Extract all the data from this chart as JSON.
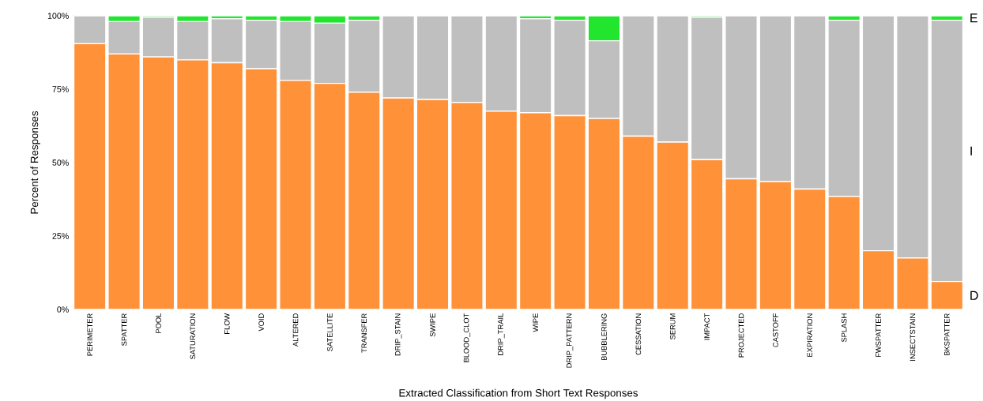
{
  "chart_data": {
    "type": "bar",
    "stacked": true,
    "xlabel": "Extracted Classification from Short Text Responses",
    "ylabel": "Percent of Responses",
    "categories": [
      "PERIMETER",
      "SPATTER",
      "POOL",
      "SATURATION",
      "FLOW",
      "VOID",
      "ALTERED",
      "SATELLITE",
      "TRANSFER",
      "DRIP_STAIN",
      "SWIPE",
      "BLOOD_CLOT",
      "DRIP_TRAIL",
      "WIPE",
      "DRIP_PATTERN",
      "BUBBLERING",
      "CESSATION",
      "SERUM",
      "IMPACT",
      "PROJECTED",
      "CASTOFF",
      "EXPIRATION",
      "SPLASH",
      "FWSPATTER",
      "INSECTSTAIN",
      "BKSPATTER"
    ],
    "series": [
      {
        "name": "D",
        "color": "#ff9138",
        "values": [
          90.5,
          87,
          86,
          85,
          84,
          82,
          78,
          77,
          74,
          72,
          71.5,
          70.5,
          67.5,
          67,
          66,
          65,
          59,
          57,
          51,
          44.5,
          43.5,
          41,
          38.5,
          20,
          17.5,
          9.5
        ]
      },
      {
        "name": "I",
        "color": "#bfbfbf",
        "values": [
          9.5,
          11,
          13.5,
          13,
          15,
          16.5,
          20,
          20.5,
          24.5,
          28,
          28.5,
          29.5,
          32.5,
          32,
          32.5,
          26.5,
          41,
          43,
          48.5,
          55.5,
          56.5,
          59,
          60,
          80,
          82.5,
          89
        ]
      },
      {
        "name": "E",
        "color": "#22e52e",
        "values": [
          0,
          2,
          0.5,
          2,
          1,
          1.5,
          2,
          2.5,
          1.5,
          0,
          0,
          0,
          0,
          1,
          1.5,
          8.5,
          0,
          0,
          0.5,
          0,
          0,
          0,
          1.5,
          0,
          0,
          1.5
        ]
      }
    ],
    "ylim": [
      0,
      100
    ],
    "yticks": [
      {
        "value": 0,
        "label": "0%"
      },
      {
        "value": 25,
        "label": "25%"
      },
      {
        "value": 50,
        "label": "50%"
      },
      {
        "value": 75,
        "label": "75%"
      },
      {
        "value": 100,
        "label": "100%"
      }
    ]
  }
}
